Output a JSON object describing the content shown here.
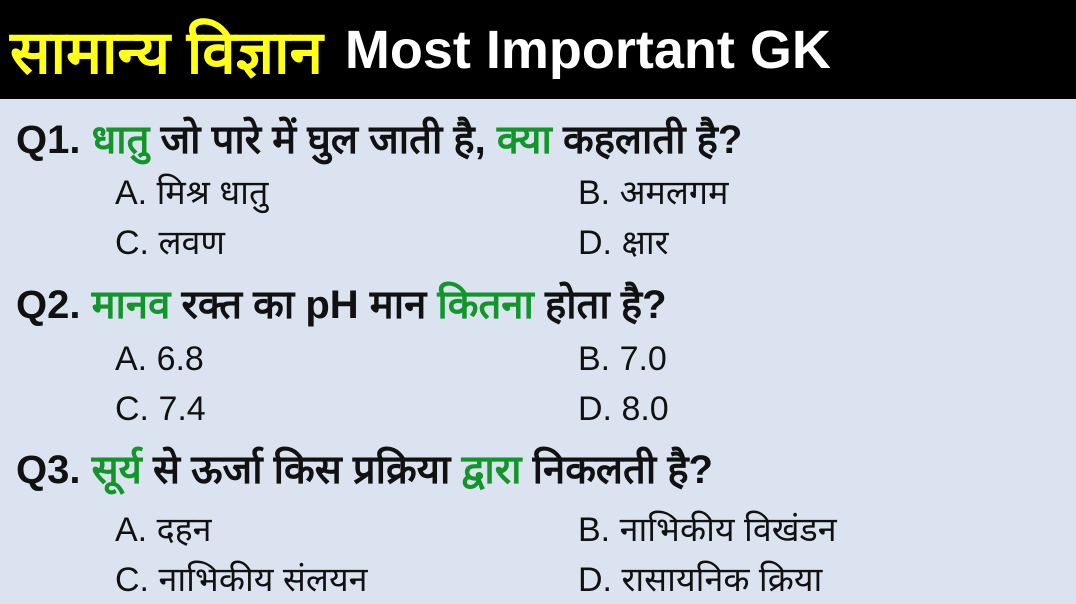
{
  "header": {
    "title_hindi": "सामान्य विज्ञान",
    "title_english": "Most Important GK"
  },
  "colors": {
    "header_bg": "#000000",
    "title_hindi": "#ffff1a",
    "title_english": "#ffffff",
    "highlight": "#12962a",
    "background": "#dbe3f1"
  },
  "questions": [
    {
      "number": "Q1.",
      "segments": [
        {
          "text": "धातु",
          "highlight": true
        },
        {
          "text": " जो पारे में घुल जाती है, ",
          "highlight": false
        },
        {
          "text": "क्या",
          "highlight": true
        },
        {
          "text": " कहलाती है?",
          "highlight": false
        }
      ],
      "options": [
        "A. मिश्र धातु",
        "B. अमलगम",
        "C. लवण",
        "D. क्षार"
      ]
    },
    {
      "number": "Q2.",
      "segments": [
        {
          "text": "मानव",
          "highlight": true
        },
        {
          "text": " रक्त का pH मान ",
          "highlight": false
        },
        {
          "text": "कितना",
          "highlight": true
        },
        {
          "text": " होता है?",
          "highlight": false
        }
      ],
      "options": [
        "A. 6.8",
        "B. 7.0",
        "C. 7.4",
        "D. 8.0"
      ]
    },
    {
      "number": "Q3.",
      "segments": [
        {
          "text": "सूर्य",
          "highlight": true
        },
        {
          "text": " से ऊर्जा किस प्रक्रिया ",
          "highlight": false
        },
        {
          "text": "द्वारा",
          "highlight": true
        },
        {
          "text": " निकलती है?",
          "highlight": false
        }
      ],
      "options": [
        "A. दहन",
        "B. नाभिकीय विखंडन",
        "C. नाभिकीय संलयन",
        "D. रासायनिक क्रिया"
      ]
    }
  ]
}
